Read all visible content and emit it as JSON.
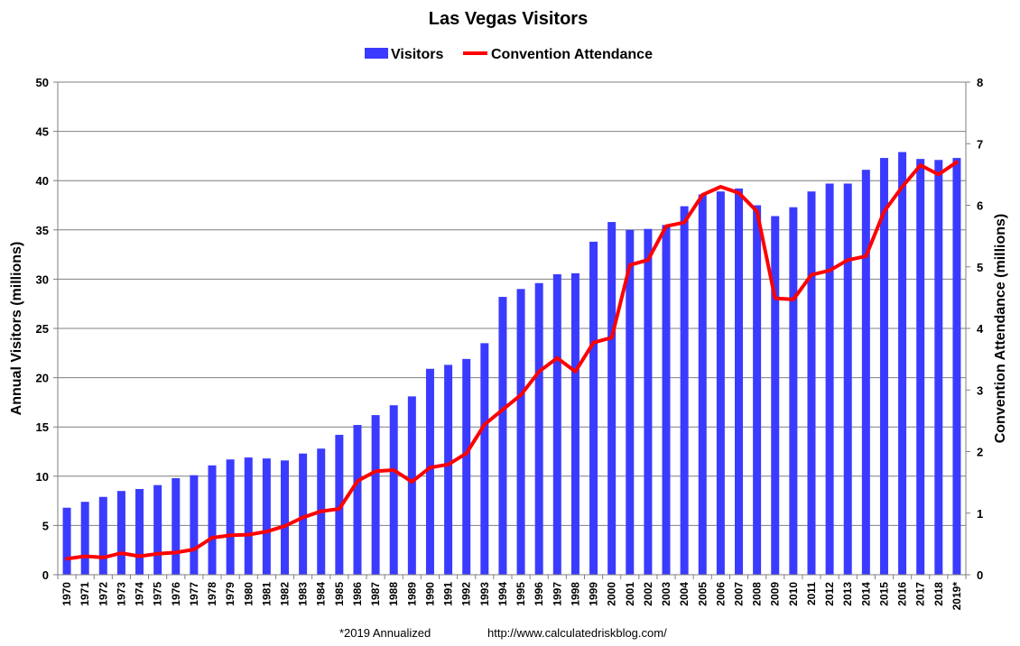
{
  "chart_data": {
    "type": "bar+line",
    "title": "Las Vegas Visitors",
    "categories": [
      "1970",
      "1971",
      "1972",
      "1973",
      "1974",
      "1975",
      "1976",
      "1977",
      "1978",
      "1979",
      "1980",
      "1981",
      "1982",
      "1983",
      "1984",
      "1985",
      "1986",
      "1987",
      "1988",
      "1989",
      "1990",
      "1991",
      "1992",
      "1993",
      "1994",
      "1995",
      "1996",
      "1997",
      "1998",
      "1999",
      "2000",
      "2001",
      "2002",
      "2003",
      "2004",
      "2005",
      "2006",
      "2007",
      "2008",
      "2009",
      "2010",
      "2011",
      "2012",
      "2013",
      "2014",
      "2015",
      "2016",
      "2017",
      "2018",
      "2019*"
    ],
    "series": [
      {
        "name": "Visitors",
        "kind": "bar",
        "axis": "left",
        "color": "#3B3BFF",
        "values": [
          6.8,
          7.4,
          7.9,
          8.5,
          8.7,
          9.1,
          9.8,
          10.1,
          11.1,
          11.7,
          11.9,
          11.8,
          11.6,
          12.3,
          12.8,
          14.2,
          15.2,
          16.2,
          17.2,
          18.1,
          20.9,
          21.3,
          21.9,
          23.5,
          28.2,
          29.0,
          29.6,
          30.5,
          30.6,
          33.8,
          35.8,
          35.0,
          35.1,
          35.5,
          37.4,
          38.6,
          38.9,
          39.2,
          37.5,
          36.4,
          37.3,
          38.9,
          39.7,
          39.7,
          41.1,
          42.3,
          42.9,
          42.2,
          42.1,
          42.3
        ]
      },
      {
        "name": "Convention Attendance",
        "kind": "line",
        "axis": "right",
        "color": "#FF0000",
        "values": [
          0.26,
          0.3,
          0.28,
          0.35,
          0.3,
          0.34,
          0.36,
          0.41,
          0.6,
          0.64,
          0.65,
          0.7,
          0.79,
          0.93,
          1.03,
          1.07,
          1.52,
          1.68,
          1.7,
          1.51,
          1.74,
          1.79,
          1.97,
          2.44,
          2.68,
          2.92,
          3.3,
          3.52,
          3.3,
          3.77,
          3.85,
          5.03,
          5.11,
          5.66,
          5.72,
          6.17,
          6.3,
          6.2,
          5.9,
          4.49,
          4.47,
          4.87,
          4.94,
          5.11,
          5.17,
          5.9,
          6.3,
          6.65,
          6.5,
          6.7
        ]
      }
    ],
    "y_left": {
      "label": "Annual Visitors (millions)",
      "range": [
        0,
        50
      ],
      "ticks": [
        "0",
        "5",
        "10",
        "15",
        "20",
        "25",
        "30",
        "35",
        "40",
        "45",
        "50"
      ]
    },
    "y_right": {
      "label": "Convention Attendance (millions)",
      "range": [
        0,
        8
      ],
      "ticks": [
        "0",
        "1",
        "2",
        "3",
        "4",
        "5",
        "6",
        "7",
        "8"
      ]
    },
    "grid": true,
    "legend_position": "top-center"
  },
  "footer": {
    "note": "*2019 Annualized",
    "url": "http://www.calculatedriskblog.com/"
  }
}
